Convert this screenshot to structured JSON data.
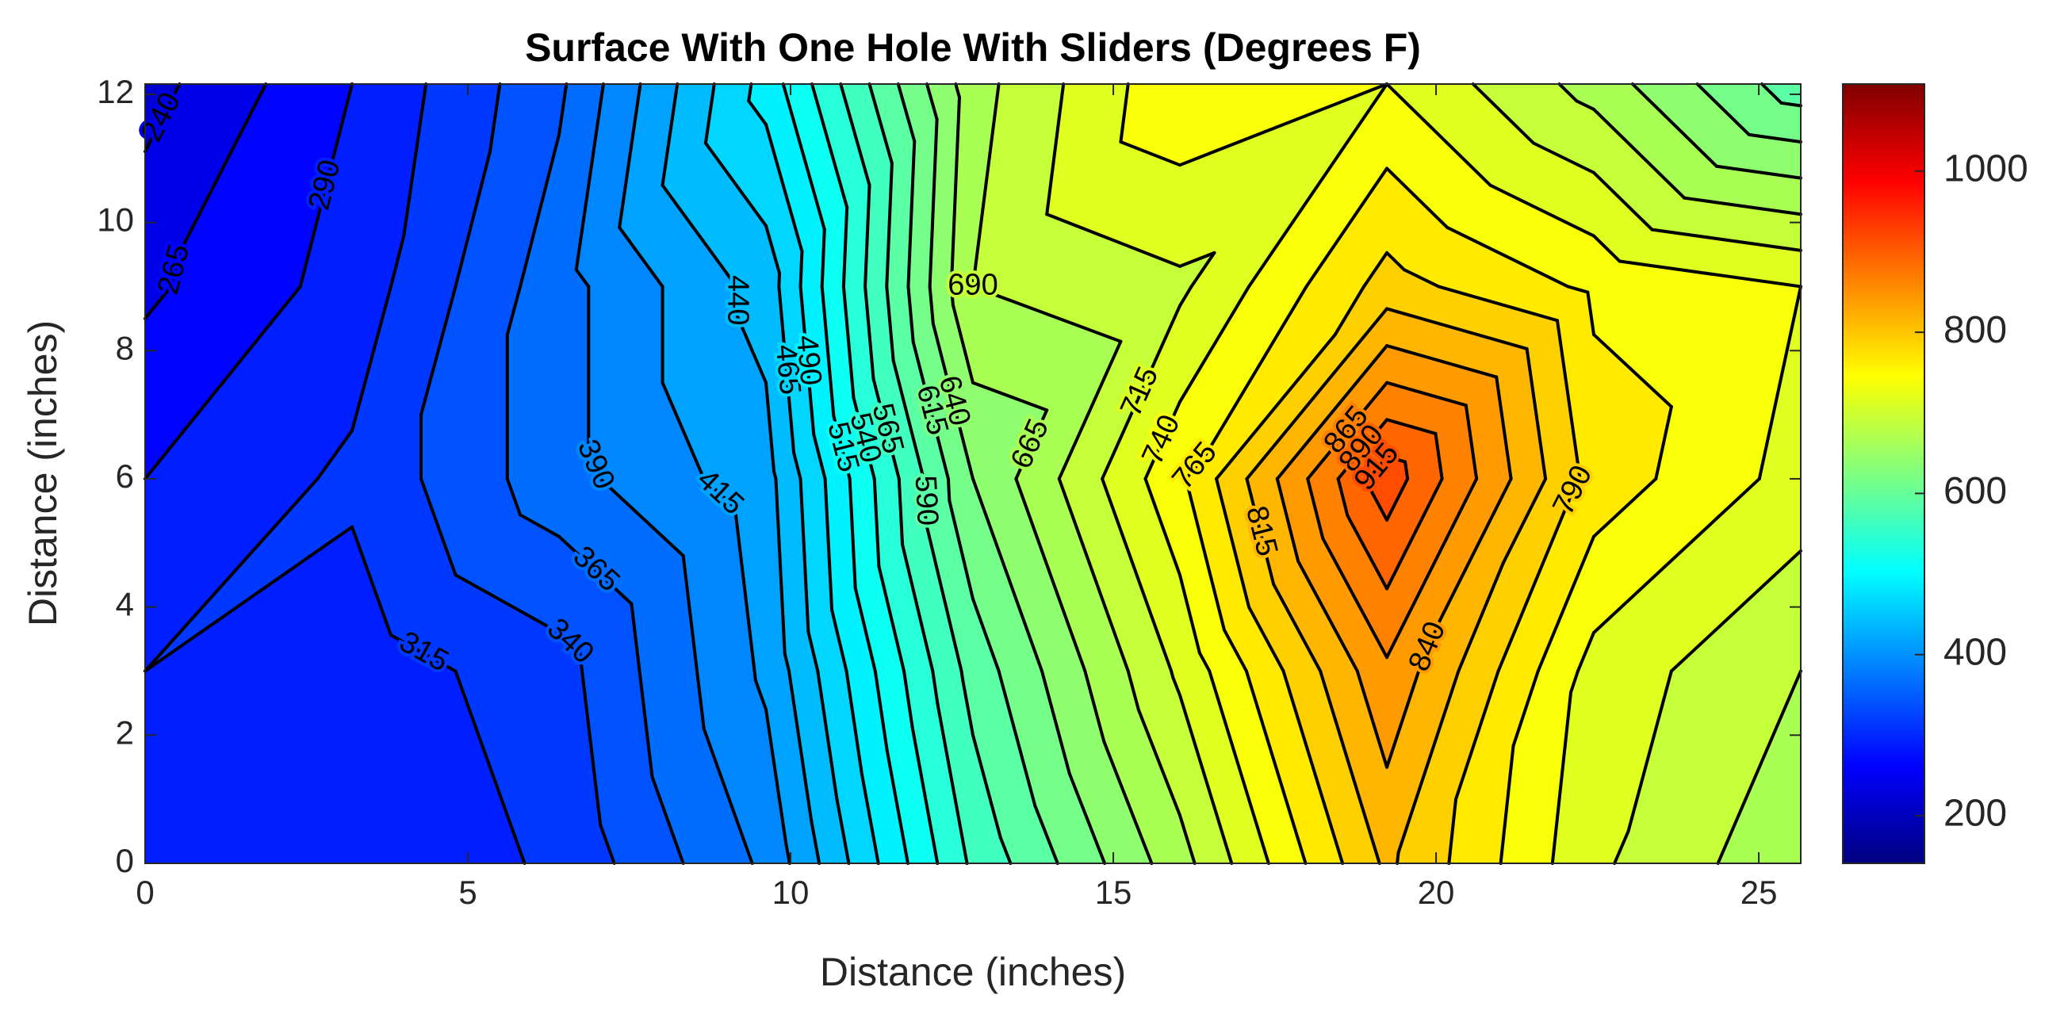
{
  "chart_data": {
    "type": "contour",
    "title": "Surface With One Hole With Sliders (Degrees F)",
    "xlabel": "Distance (inches)",
    "ylabel": "Distance (inches)",
    "x": [
      0,
      3.206,
      6.413,
      9.619,
      12.825,
      16.031,
      19.238,
      22.444,
      25.65
    ],
    "y": [
      0,
      3,
      6,
      9,
      12.16
    ],
    "z": [
      [
        300,
        290,
        320,
        395,
        570,
        680,
        820,
        720,
        670
      ],
      [
        315,
        300,
        330,
        420,
        600,
        720,
        860,
        730,
        690
      ],
      [
        290,
        320,
        380,
        430,
        640,
        760,
        930,
        780,
        730
      ],
      [
        260,
        300,
        380,
        450,
        690,
        710,
        800,
        760,
        740
      ],
      [
        230,
        290,
        360,
        500,
        680,
        760,
        740,
        680,
        600
      ]
    ],
    "levels": [
      240,
      265,
      290,
      315,
      340,
      365,
      390,
      415,
      440,
      465,
      490,
      515,
      540,
      565,
      590,
      615,
      640,
      665,
      690,
      715,
      740,
      765,
      790,
      815,
      840,
      865,
      890,
      915
    ],
    "colormap": "jet",
    "line_color": "#000000",
    "clim": [
      141,
      1108
    ],
    "cticks": [
      200,
      400,
      600,
      800,
      1000
    ],
    "xlim": [
      0,
      25.65
    ],
    "xticks": [
      0,
      5,
      10,
      15,
      20,
      25
    ],
    "ylim": [
      0,
      12.16
    ],
    "yticks": [
      0,
      2,
      4,
      6,
      8,
      10,
      12
    ]
  }
}
